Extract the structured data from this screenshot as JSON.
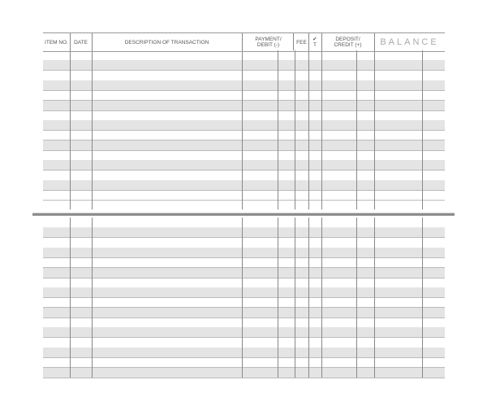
{
  "register": {
    "headers": {
      "item_no": "ITEM NO.",
      "date": "DATE",
      "description": "DESCRIPTION OF TRANSACTION",
      "payment": "PAYMENT/ DEBIT (-)",
      "fee": "FEE",
      "check": "✔ T",
      "deposit": "DEPOSIT/ CREDIT (+)",
      "balance": "BALANCE"
    }
  }
}
